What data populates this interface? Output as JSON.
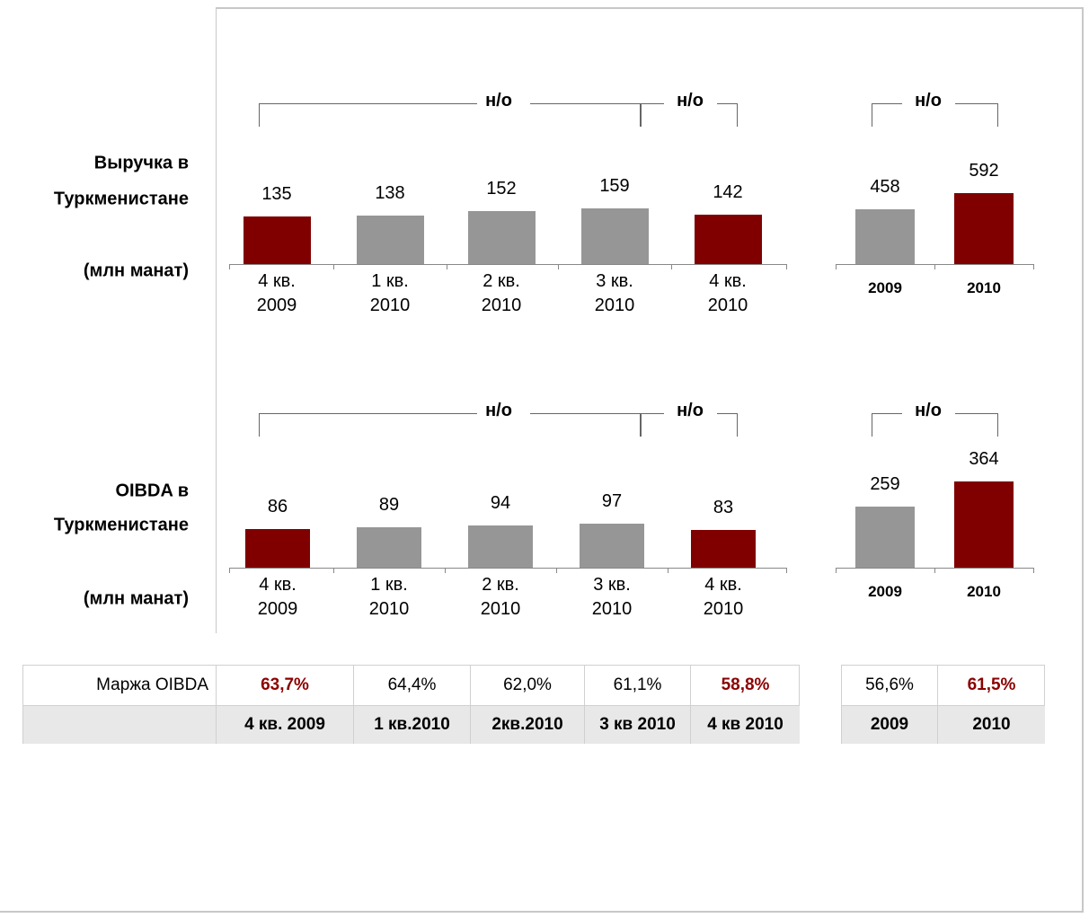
{
  "rows": [
    {
      "label": [
        "Выручка в",
        "Туркменистане"
      ],
      "unit": "(млн манат)"
    },
    {
      "label": [
        "OIBDA в",
        "Туркменистане"
      ],
      "unit": "(млн манат)"
    }
  ],
  "chart_data": [
    {
      "type": "bar",
      "categories": [
        "4 кв. 2009",
        "1 кв. 2010",
        "2 кв. 2010",
        "3 кв. 2010",
        "4 кв. 2010"
      ],
      "values": [
        135,
        138,
        152,
        159,
        142
      ],
      "colors": [
        "#800000",
        "#969696",
        "#969696",
        "#969696",
        "#800000"
      ],
      "annotations": [
        "н/о",
        "н/о"
      ]
    },
    {
      "type": "bar",
      "categories": [
        "2009",
        "2010"
      ],
      "values": [
        458,
        592
      ],
      "colors": [
        "#969696",
        "#800000"
      ],
      "annotations": [
        "н/о"
      ]
    },
    {
      "type": "bar",
      "categories": [
        "4 кв. 2009",
        "1 кв. 2010",
        "2 кв. 2010",
        "3 кв. 2010",
        "4 кв. 2010"
      ],
      "values": [
        86,
        89,
        94,
        97,
        83
      ],
      "colors": [
        "#800000",
        "#969696",
        "#969696",
        "#969696",
        "#800000"
      ],
      "annotations": [
        "н/о",
        "н/о"
      ]
    },
    {
      "type": "bar",
      "categories": [
        "2009",
        "2010"
      ],
      "values": [
        259,
        364
      ],
      "colors": [
        "#969696",
        "#800000"
      ],
      "annotations": [
        "н/о"
      ]
    }
  ],
  "tables": [
    {
      "rows": [
        [
          "Маржа OIBDA",
          "63,7%",
          "64,4%",
          "62,0%",
          "61,1%",
          "58,8%"
        ],
        [
          "",
          "4 кв. 2009",
          "1 кв.2010",
          "2кв.2010",
          "3 кв 2010",
          "4 кв 2010"
        ]
      ]
    },
    {
      "rows": [
        [
          "56,6%",
          "61,5%"
        ],
        [
          "2009",
          "2010"
        ]
      ]
    }
  ]
}
